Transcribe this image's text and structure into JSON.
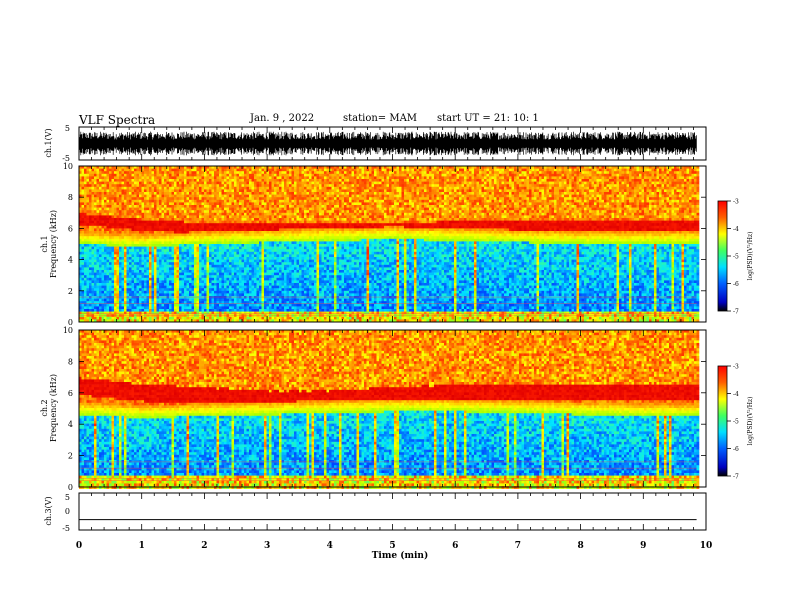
{
  "header": {
    "title": "VLF Spectra",
    "date": "Jan. 9 , 2022",
    "station": "station= MAM",
    "start": "start  UT =  21: 10: 1"
  },
  "colors": {
    "spectrum": [
      "#000080",
      "#0000ff",
      "#0080ff",
      "#00ffff",
      "#40ff80",
      "#a0ff00",
      "#ffff00",
      "#ff8000",
      "#ff0000",
      "#e00000"
    ]
  },
  "chart_data": [
    {
      "type": "line",
      "panel": "ch1-waveform",
      "ylabel": "ch.1(V)",
      "ylim": [
        -5,
        5
      ],
      "yticks": [
        "5",
        "-5"
      ],
      "x": [
        0,
        9.85
      ],
      "values": [
        0,
        0
      ],
      "note": "dense noise waveform roughly spanning -3.5 to 3.5 V"
    },
    {
      "type": "heatmap",
      "panel": "ch1-spectrogram",
      "title": "ch.1",
      "ylabel": "Frequency (kHz)",
      "ylim": [
        0,
        10
      ],
      "yticks": [
        "0",
        "2",
        "4",
        "6",
        "8",
        "10"
      ],
      "xlim": [
        0,
        10
      ],
      "band_center_khz": [
        6.6,
        6.2,
        6.0,
        6.0,
        6.0,
        6.0,
        6.1,
        6.1,
        6.2,
        6.1
      ],
      "lower_edge_khz": [
        5.0,
        4.8,
        5.0,
        5.1,
        5.2,
        5.3,
        5.2,
        5.1,
        5.0,
        5.0
      ],
      "colorbar": {
        "label": "log(PSD)(V²/Hz)",
        "range": [
          -7,
          -3
        ],
        "ticks": [
          "-3",
          "-4",
          "-5",
          "-6",
          "-7"
        ]
      }
    },
    {
      "type": "heatmap",
      "panel": "ch2-spectrogram",
      "title": "ch.2",
      "ylabel": "Frequency (kHz)",
      "ylim": [
        0,
        10
      ],
      "yticks": [
        "0",
        "2",
        "4",
        "6",
        "8",
        "10"
      ],
      "xlim": [
        0,
        10
      ],
      "band_center_khz": [
        6.4,
        6.0,
        5.8,
        5.6,
        5.6,
        5.8,
        6.0,
        6.0,
        6.0,
        6.0
      ],
      "lower_edge_khz": [
        4.6,
        4.4,
        4.5,
        4.6,
        4.7,
        4.8,
        4.8,
        4.7,
        4.6,
        4.5
      ],
      "colorbar": {
        "label": "log(PSD)(V²/Hz)",
        "range": [
          -7,
          -3
        ],
        "ticks": [
          "-3",
          "-4",
          "-5",
          "-6",
          "-7"
        ]
      }
    },
    {
      "type": "line",
      "panel": "ch3-waveform",
      "ylabel": "ch.3(V)",
      "ylim": [
        -5,
        5
      ],
      "yticks": [
        "5",
        "0",
        "-5"
      ],
      "x": [
        0,
        9.85
      ],
      "values": [
        -2.2,
        -2.2
      ]
    }
  ],
  "xaxis": {
    "label": "Time (min)",
    "ticks": [
      "0",
      "1",
      "2",
      "3",
      "4",
      "5",
      "6",
      "7",
      "8",
      "9",
      "10"
    ]
  }
}
